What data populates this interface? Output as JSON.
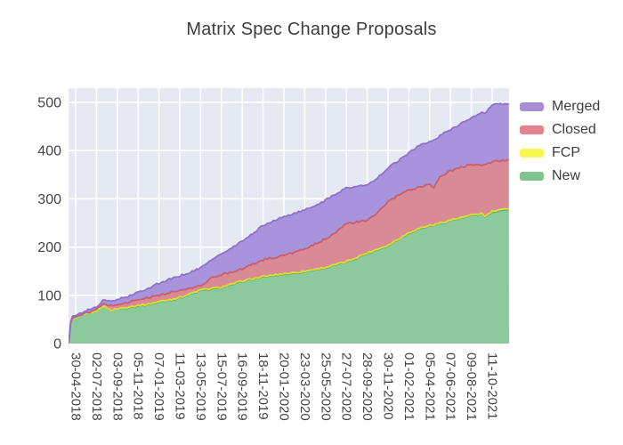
{
  "chart_data": {
    "type": "area",
    "stacked": true,
    "title": "Matrix Spec Change Proposals",
    "legend_position": "top-right-outside",
    "grid": true,
    "y_ticks": [
      0,
      100,
      200,
      300,
      400,
      500
    ],
    "ylim": [
      0,
      529
    ],
    "x_tick_labels": [
      "30-04-2018",
      "02-07-2018",
      "03-09-2018",
      "05-11-2018",
      "07-01-2019",
      "11-03-2019",
      "13-05-2019",
      "15-07-2019",
      "16-09-2019",
      "18-11-2019",
      "20-01-2020",
      "23-03-2020",
      "25-05-2020",
      "27-07-2020",
      "28-09-2020",
      "30-11-2020",
      "01-02-2021",
      "05-04-2021",
      "07-06-2021",
      "09-08-2021",
      "11-10-2021"
    ],
    "series": [
      {
        "name": "New",
        "fill": "#8cc99d",
        "line": "#5bb271",
        "swatch": "#7fc48d"
      },
      {
        "name": "FCP",
        "fill": "#f5f263",
        "line": "#dede2c",
        "swatch": "#f7f74f"
      },
      {
        "name": "Closed",
        "fill": "#d98a94",
        "line": "#c95f6c",
        "swatch": "#e2838f"
      },
      {
        "name": "Merged",
        "fill": "#a794dc",
        "line": "#8f70cf",
        "swatch": "#a98dd8"
      }
    ],
    "legend_order": [
      "Merged",
      "Closed",
      "FCP",
      "New"
    ],
    "samples_format": [
      "x_tick_position",
      "New",
      "FCP",
      "Closed",
      "Merged"
    ],
    "samples": [
      [
        -0.34,
        0,
        0,
        0,
        0
      ],
      [
        -0.3,
        12,
        0,
        1,
        2
      ],
      [
        -0.24,
        40,
        1,
        1,
        3
      ],
      [
        -0.15,
        50,
        1,
        2,
        4
      ],
      [
        0,
        52,
        1,
        2,
        3
      ],
      [
        0.5,
        60,
        1,
        2,
        5
      ],
      [
        1,
        66,
        1,
        3,
        6
      ],
      [
        1.3,
        77,
        1,
        3,
        8
      ],
      [
        1.5,
        73,
        1,
        6,
        8
      ],
      [
        1.7,
        68,
        1,
        10,
        9
      ],
      [
        2,
        71,
        1,
        9,
        10
      ],
      [
        2.5,
        74,
        2,
        9,
        12
      ],
      [
        3,
        77,
        2,
        12,
        15
      ],
      [
        3.5,
        80,
        2,
        13,
        20
      ],
      [
        4,
        85,
        2,
        13,
        25
      ],
      [
        4.5,
        89,
        2,
        14,
        28
      ],
      [
        5,
        94,
        2,
        14,
        30
      ],
      [
        5.5,
        101,
        2,
        11,
        34
      ],
      [
        6,
        109,
        2,
        9,
        36
      ],
      [
        6.5,
        112,
        2,
        21,
        39
      ],
      [
        7,
        115,
        2,
        26,
        42
      ],
      [
        7.5,
        121,
        2,
        26,
        49
      ],
      [
        8,
        128,
        2,
        25,
        57
      ],
      [
        8.5,
        132,
        2,
        30,
        64
      ],
      [
        9,
        137,
        2,
        35,
        71
      ],
      [
        9.5,
        140,
        2,
        36,
        76
      ],
      [
        10,
        143,
        2,
        38,
        80
      ],
      [
        10.5,
        145,
        2,
        42,
        81
      ],
      [
        11,
        148,
        2,
        45,
        81
      ],
      [
        11.5,
        152,
        2,
        52,
        80
      ],
      [
        12,
        156,
        2,
        59,
        80
      ],
      [
        12.5,
        162,
        2,
        68,
        78
      ],
      [
        13,
        168,
        2,
        78,
        75
      ],
      [
        13.5,
        177,
        2,
        73,
        74
      ],
      [
        14,
        186,
        2,
        66,
        74
      ],
      [
        14.5,
        194,
        2,
        76,
        71
      ],
      [
        15,
        202,
        2,
        90,
        71
      ],
      [
        15.5,
        215,
        2,
        90,
        72
      ],
      [
        16,
        228,
        2,
        88,
        77
      ],
      [
        16.5,
        237,
        2,
        85,
        86
      ],
      [
        17,
        243,
        2,
        86,
        89
      ],
      [
        17.2,
        244,
        2,
        78,
        96
      ],
      [
        17.5,
        248,
        2,
        96,
        86
      ],
      [
        18,
        254,
        2,
        102,
        86
      ],
      [
        18.5,
        259,
        2,
        104,
        91
      ],
      [
        19,
        264,
        2,
        106,
        95
      ],
      [
        19.5,
        268,
        2,
        100,
        108
      ],
      [
        19.65,
        261,
        2,
        107,
        108
      ],
      [
        20,
        271,
        3,
        103,
        117
      ],
      [
        20.4,
        274,
        3,
        102,
        117
      ],
      [
        20.8,
        277,
        3,
        101,
        116
      ]
    ]
  },
  "colors": {
    "plot_background": "#e5e9f2",
    "gridline": "#ffffff",
    "title_text": "#3d3d3d",
    "tick_text": "#444444",
    "page_background": "#ffffff"
  }
}
